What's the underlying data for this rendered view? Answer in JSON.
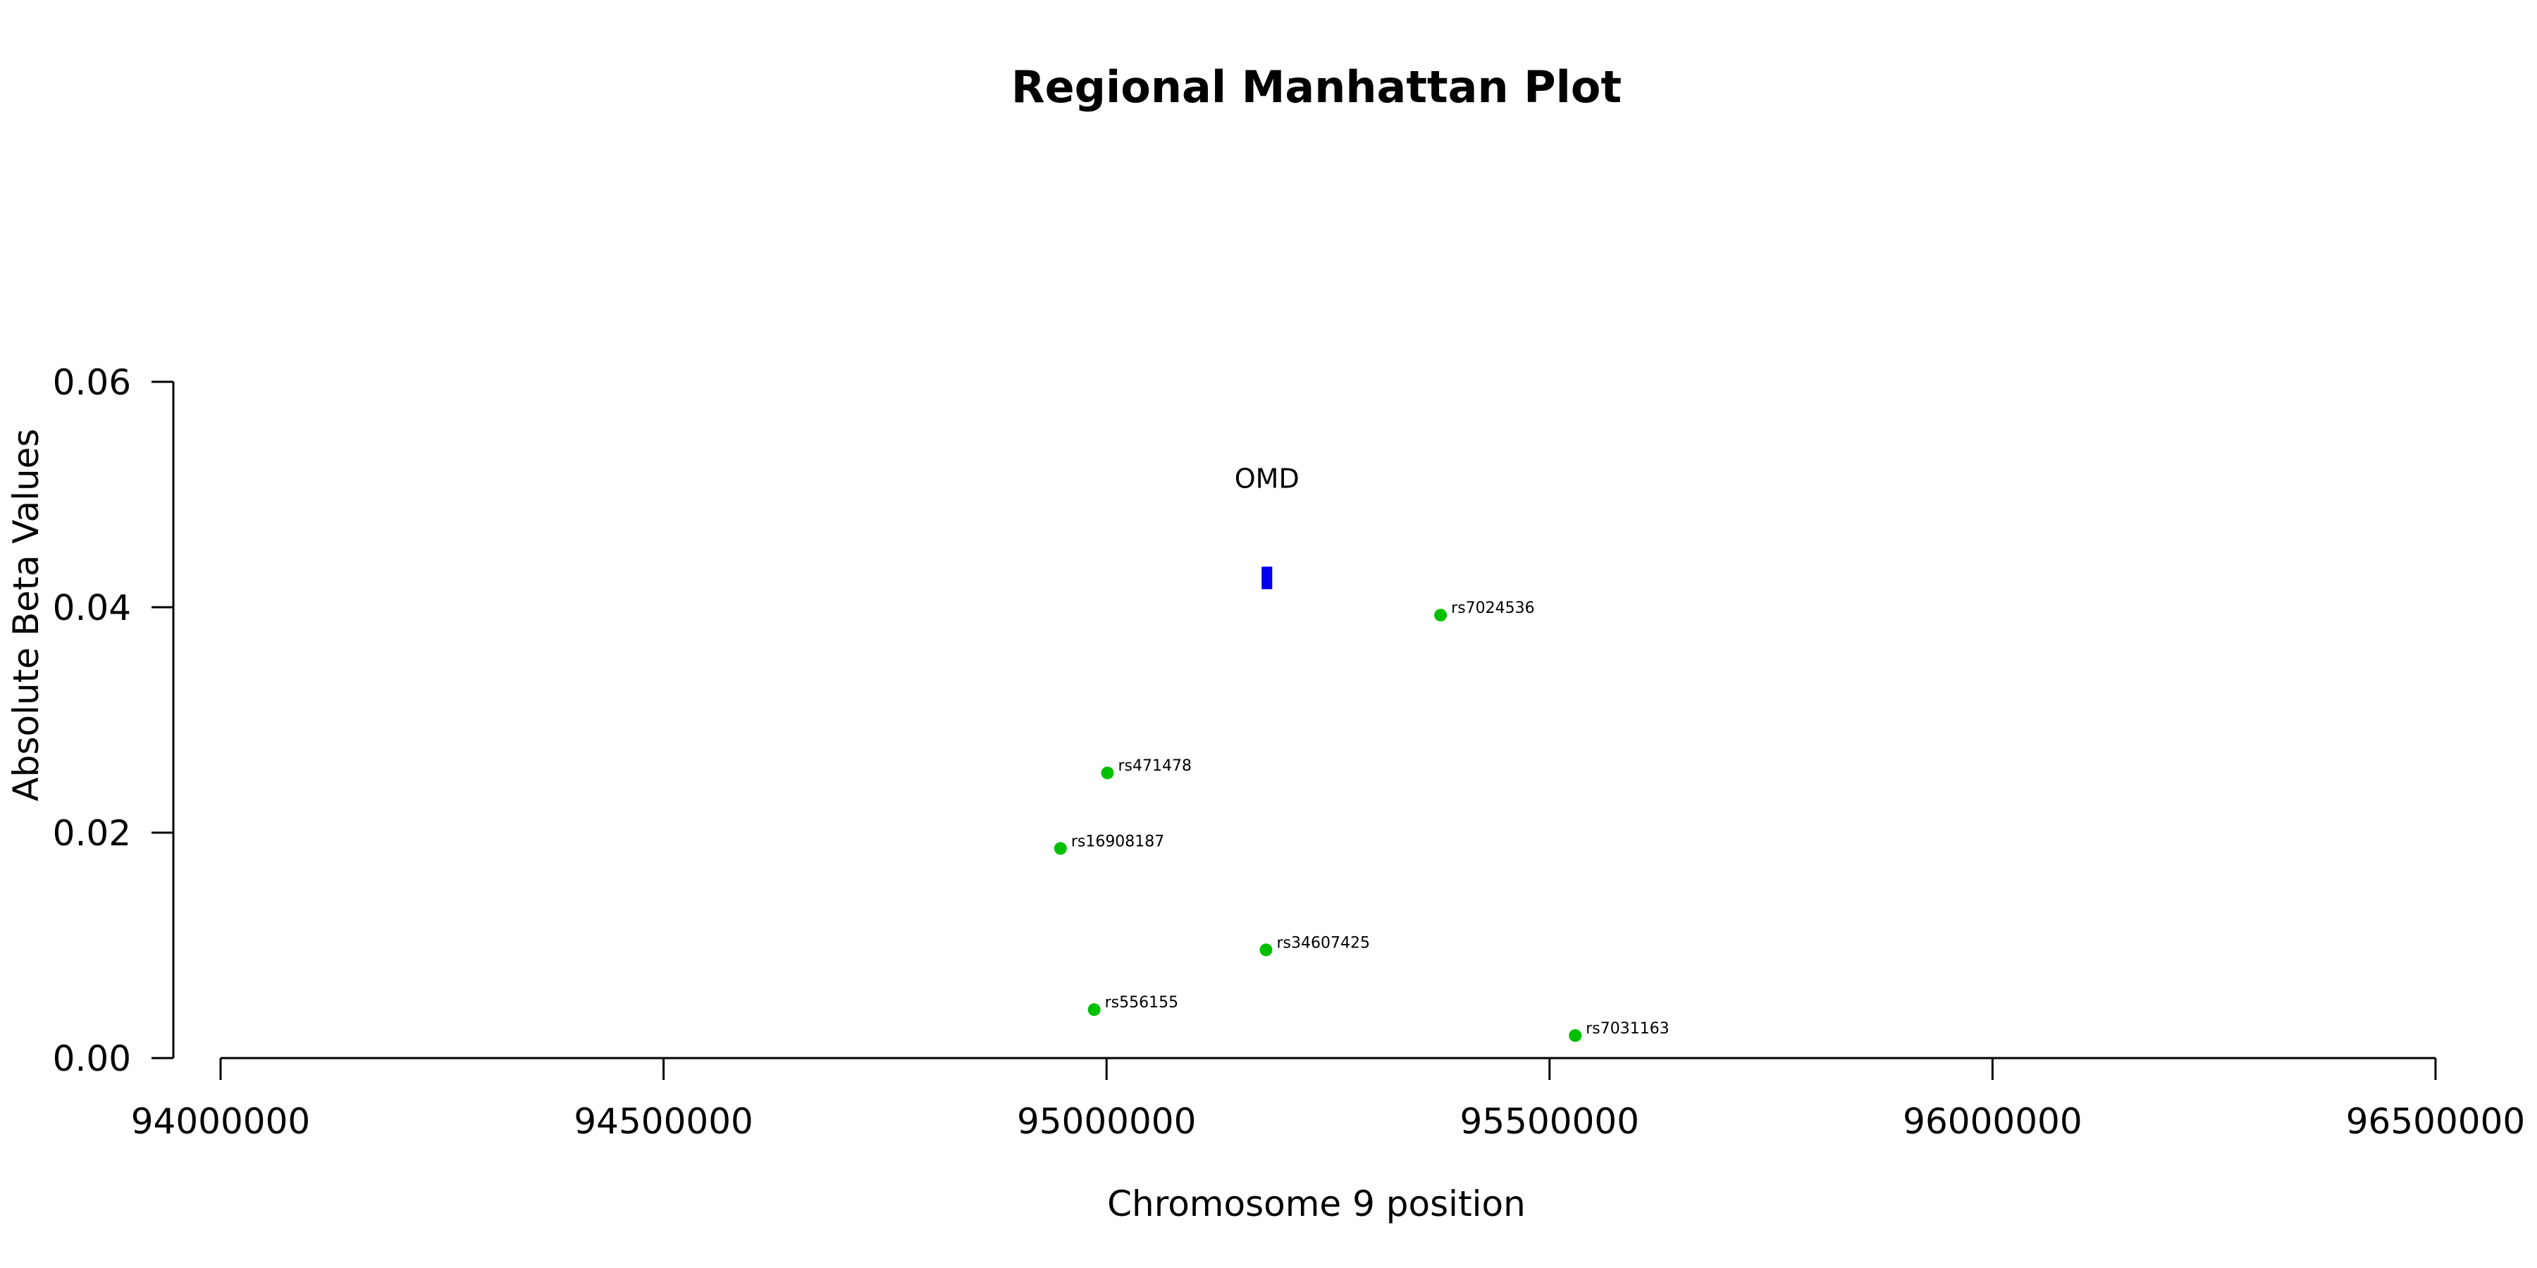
{
  "chart_data": {
    "type": "scatter",
    "title": "Regional Manhattan Plot",
    "xlabel": "Chromosome 9 position",
    "ylabel": "Absolute Beta Values",
    "xlim": [
      94000000,
      96500000
    ],
    "ylim": [
      0,
      0.06
    ],
    "xticks": [
      94000000,
      94500000,
      95000000,
      95500000,
      96000000,
      96500000
    ],
    "xtick_labels": [
      "94000000",
      "94500000",
      "95000000",
      "95500000",
      "96000000",
      "96500000"
    ],
    "yticks": [
      0,
      0.02,
      0.04,
      0.06
    ],
    "ytick_labels": [
      "0.00",
      "0.02",
      "0.04",
      "0.06"
    ],
    "grid": false,
    "point_color": "#00c000",
    "gene_color": "#0000ee",
    "points": [
      {
        "label": "rs7024536",
        "x": 95377000,
        "y": 0.0393
      },
      {
        "label": "rs471478",
        "x": 95001000,
        "y": 0.0253
      },
      {
        "label": "rs16908187",
        "x": 94948000,
        "y": 0.0186
      },
      {
        "label": "rs34607425",
        "x": 95180000,
        "y": 0.0096
      },
      {
        "label": "rs556155",
        "x": 94986000,
        "y": 0.0043
      },
      {
        "label": "rs7031163",
        "x": 95529000,
        "y": 0.002
      }
    ],
    "genes": [
      {
        "label": "OMD",
        "x_start": 95175000,
        "x_end": 95187000,
        "y": 0.0426
      }
    ]
  }
}
